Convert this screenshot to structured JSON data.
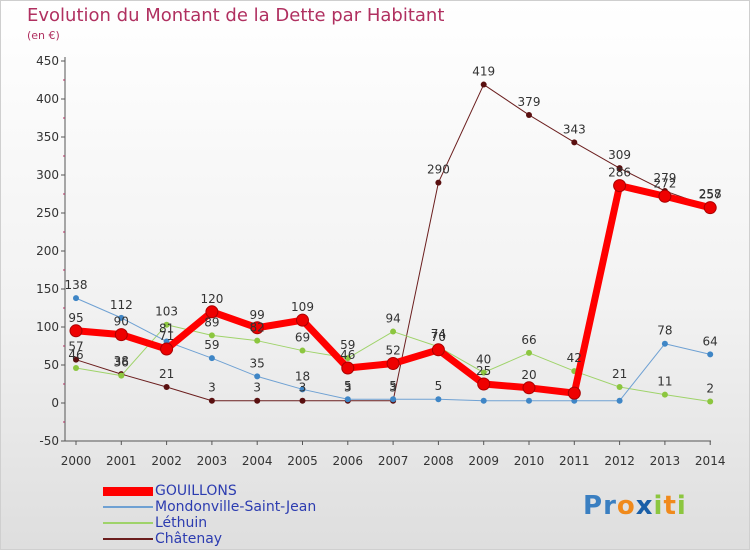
{
  "chart_data": {
    "type": "line",
    "title": "Evolution du Montant de la Dette par Habitant",
    "subtitle": "(en €)",
    "x": [
      "2000",
      "2001",
      "2002",
      "2003",
      "2004",
      "2005",
      "2006",
      "2007",
      "2008",
      "2009",
      "2010",
      "2011",
      "2012",
      "2013",
      "2014"
    ],
    "ylim": [
      -50,
      450
    ],
    "yticks": [
      -50,
      0,
      50,
      100,
      150,
      200,
      250,
      300,
      350,
      400,
      450
    ],
    "grid": false,
    "legend_position": "bottom-left",
    "series": [
      {
        "name": "Châtenay",
        "color": "#6b1e1e",
        "marker": "#5a1010",
        "width": 1,
        "values": [
          57,
          38,
          21,
          3,
          3,
          3,
          3,
          3,
          290,
          419,
          379,
          343,
          309,
          279,
          258
        ]
      },
      {
        "name": "Léthuin",
        "color": "#9fd36a",
        "marker": "#8cc63f",
        "width": 1,
        "values": [
          46,
          36,
          103,
          89,
          82,
          69,
          59,
          94,
          74,
          40,
          66,
          42,
          21,
          11,
          2
        ]
      },
      {
        "name": "Mondonville-Saint-Jean",
        "color": "#6fa1d3",
        "marker": "#3f86c6",
        "width": 1,
        "values": [
          138,
          112,
          81,
          59,
          35,
          18,
          5,
          5,
          5,
          3,
          3,
          3,
          3,
          78,
          64
        ]
      },
      {
        "name": "GOUILLONS",
        "color": "#ff0000",
        "marker": "#ee0000",
        "width": 7,
        "values": [
          95,
          90,
          71,
          120,
          99,
          109,
          46,
          52,
          70,
          25,
          20,
          13,
          286,
          272,
          257
        ]
      }
    ],
    "data_labels": [
      {
        "x": 0,
        "y": 138,
        "text": "138"
      },
      {
        "x": 0,
        "y": 95,
        "text": "95"
      },
      {
        "x": 0,
        "y": 57,
        "text": "57"
      },
      {
        "x": 0,
        "y": 46,
        "text": "46"
      },
      {
        "x": 1,
        "y": 112,
        "text": "112"
      },
      {
        "x": 1,
        "y": 90,
        "text": "90"
      },
      {
        "x": 1,
        "y": 38,
        "text": "38"
      },
      {
        "x": 1,
        "y": 36,
        "text": "36"
      },
      {
        "x": 2,
        "y": 103,
        "text": "103"
      },
      {
        "x": 2,
        "y": 81,
        "text": "81"
      },
      {
        "x": 2,
        "y": 71,
        "text": "71"
      },
      {
        "x": 2,
        "y": 21,
        "text": "21"
      },
      {
        "x": 3,
        "y": 120,
        "text": "120"
      },
      {
        "x": 3,
        "y": 89,
        "text": "89"
      },
      {
        "x": 3,
        "y": 59,
        "text": "59"
      },
      {
        "x": 3,
        "y": 3,
        "text": "3"
      },
      {
        "x": 4,
        "y": 99,
        "text": "99"
      },
      {
        "x": 4,
        "y": 82,
        "text": "82"
      },
      {
        "x": 4,
        "y": 35,
        "text": "35"
      },
      {
        "x": 4,
        "y": 3,
        "text": "3"
      },
      {
        "x": 5,
        "y": 109,
        "text": "109"
      },
      {
        "x": 5,
        "y": 69,
        "text": "69"
      },
      {
        "x": 5,
        "y": 18,
        "text": "18"
      },
      {
        "x": 5,
        "y": 3,
        "text": "3"
      },
      {
        "x": 6,
        "y": 59,
        "text": "59"
      },
      {
        "x": 6,
        "y": 46,
        "text": "46"
      },
      {
        "x": 6,
        "y": 5,
        "text": "5"
      },
      {
        "x": 6,
        "y": 3,
        "text": "3"
      },
      {
        "x": 7,
        "y": 94,
        "text": "94"
      },
      {
        "x": 7,
        "y": 52,
        "text": "52"
      },
      {
        "x": 7,
        "y": 5,
        "text": "5"
      },
      {
        "x": 7,
        "y": 3,
        "text": "3"
      },
      {
        "x": 8,
        "y": 290,
        "text": "290"
      },
      {
        "x": 8,
        "y": 74,
        "text": "74"
      },
      {
        "x": 8,
        "y": 70,
        "text": "70"
      },
      {
        "x": 8,
        "y": 5,
        "text": "5"
      },
      {
        "x": 9,
        "y": 419,
        "text": "419"
      },
      {
        "x": 9,
        "y": 40,
        "text": "40"
      },
      {
        "x": 9,
        "y": 25,
        "text": "25"
      },
      {
        "x": 10,
        "y": 379,
        "text": "379"
      },
      {
        "x": 10,
        "y": 66,
        "text": "66"
      },
      {
        "x": 10,
        "y": 20,
        "text": "20"
      },
      {
        "x": 11,
        "y": 343,
        "text": "343"
      },
      {
        "x": 11,
        "y": 42,
        "text": "42"
      },
      {
        "x": 12,
        "y": 309,
        "text": "309"
      },
      {
        "x": 12,
        "y": 286,
        "text": "286"
      },
      {
        "x": 12,
        "y": 21,
        "text": "21"
      },
      {
        "x": 13,
        "y": 279,
        "text": "279"
      },
      {
        "x": 13,
        "y": 272,
        "text": "272"
      },
      {
        "x": 13,
        "y": 78,
        "text": "78"
      },
      {
        "x": 13,
        "y": 11,
        "text": "11"
      },
      {
        "x": 14,
        "y": 258,
        "text": "258"
      },
      {
        "x": 14,
        "y": 257,
        "text": "257"
      },
      {
        "x": 14,
        "y": 64,
        "text": "64"
      },
      {
        "x": 14,
        "y": 2,
        "text": "2"
      }
    ]
  },
  "legend": {
    "items": [
      {
        "label": "GOUILLONS",
        "color": "#ff0000",
        "thickness": "thick"
      },
      {
        "label": "Mondonville-Saint-Jean",
        "color": "#6fa1d3",
        "thickness": "thin"
      },
      {
        "label": "Léthuin",
        "color": "#9fd36a",
        "thickness": "thin"
      },
      {
        "label": "Châtenay",
        "color": "#6b1e1e",
        "thickness": "thin"
      }
    ]
  },
  "brand": {
    "letters": [
      "P",
      "r",
      "o",
      "x",
      "i",
      "t",
      "i"
    ],
    "colors": [
      "#3a7fc1",
      "#3a7fc1",
      "#f08a1c",
      "#1a5fa8",
      "#8cc63f",
      "#f08a1c",
      "#8cc63f"
    ]
  }
}
